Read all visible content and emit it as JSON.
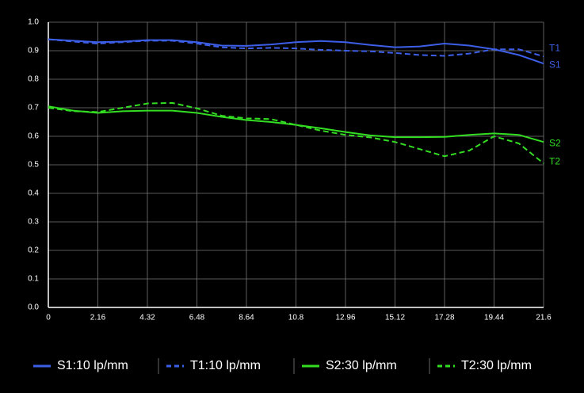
{
  "chart_data": {
    "type": "line",
    "x": [
      0,
      1.08,
      2.16,
      3.24,
      4.32,
      5.4,
      6.48,
      7.56,
      8.64,
      9.72,
      10.8,
      11.88,
      12.96,
      14.04,
      15.12,
      16.2,
      17.28,
      18.36,
      19.44,
      20.52,
      21.6
    ],
    "series": [
      {
        "name": "S1:10 lp/mm",
        "end_label": "S1",
        "color": "#3d5fe8",
        "dashed": false,
        "values": [
          0.94,
          0.935,
          0.93,
          0.932,
          0.937,
          0.937,
          0.93,
          0.918,
          0.917,
          0.922,
          0.93,
          0.934,
          0.93,
          0.92,
          0.912,
          0.915,
          0.925,
          0.918,
          0.905,
          0.885,
          0.855
        ]
      },
      {
        "name": "T1:10 lp/mm",
        "end_label": "T1",
        "color": "#3d5fe8",
        "dashed": true,
        "values": [
          0.94,
          0.932,
          0.925,
          0.93,
          0.935,
          0.935,
          0.925,
          0.912,
          0.908,
          0.91,
          0.908,
          0.903,
          0.9,
          0.898,
          0.892,
          0.885,
          0.882,
          0.89,
          0.905,
          0.905,
          0.88
        ]
      },
      {
        "name": "S2:30 lp/mm",
        "end_label": "S2",
        "color": "#33dd22",
        "dashed": false,
        "values": [
          0.705,
          0.69,
          0.682,
          0.688,
          0.69,
          0.69,
          0.682,
          0.668,
          0.657,
          0.65,
          0.64,
          0.628,
          0.615,
          0.603,
          0.597,
          0.597,
          0.598,
          0.605,
          0.61,
          0.605,
          0.58
        ]
      },
      {
        "name": "T2:30 lp/mm",
        "end_label": "T2",
        "color": "#33dd22",
        "dashed": true,
        "values": [
          0.7,
          0.688,
          0.685,
          0.7,
          0.715,
          0.717,
          0.698,
          0.672,
          0.663,
          0.66,
          0.64,
          0.62,
          0.605,
          0.596,
          0.58,
          0.555,
          0.53,
          0.55,
          0.6,
          0.575,
          0.505
        ]
      }
    ],
    "xlim": [
      0,
      21.6
    ],
    "xticks": [
      0,
      2.16,
      4.32,
      6.48,
      8.64,
      10.8,
      12.96,
      15.12,
      17.28,
      19.44,
      21.6
    ],
    "ylim": [
      0,
      1
    ],
    "yticks": [
      {
        "value": 0,
        "label": "0.0"
      },
      0.1,
      0.2,
      0.3,
      0.4,
      0.5,
      0.6,
      0.7,
      0.8,
      0.9,
      {
        "value": 1,
        "label": "1.0"
      }
    ],
    "grid": true
  }
}
